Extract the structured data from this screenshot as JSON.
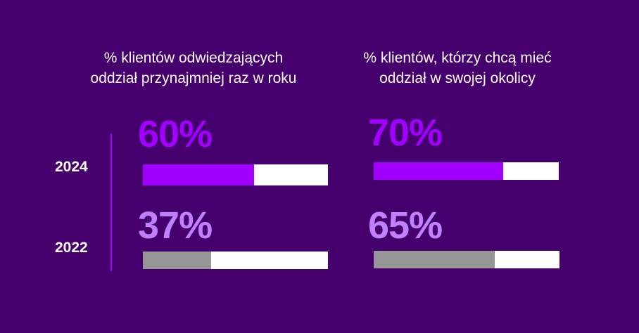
{
  "colors": {
    "background": "#46006e",
    "accent_2024": "#a100ff",
    "percent_2022": "#be82ff",
    "bar_2022": "#969696",
    "bar_track": "#ffffff"
  },
  "chart_data": {
    "type": "bar",
    "orientation": "horizontal",
    "categories": [
      "2024",
      "2022"
    ],
    "panels": [
      {
        "title": "% klientów odwiedzających\noddział przynajmniej raz w roku",
        "values": [
          60,
          37
        ],
        "labels": [
          "60%",
          "37%"
        ]
      },
      {
        "title": "% klientów, którzy chcą mieć\noddział w swojej okolicy",
        "values": [
          70,
          65
        ],
        "labels": [
          "70%",
          "65%"
        ]
      }
    ],
    "xlim": [
      0,
      100
    ]
  }
}
